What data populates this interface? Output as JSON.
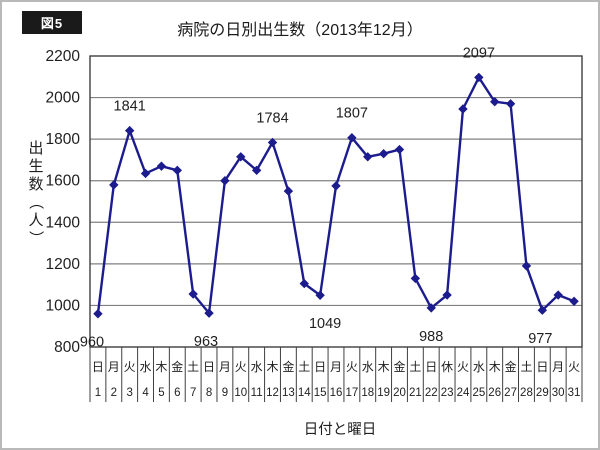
{
  "figure_label": "図5",
  "chart_data": {
    "type": "line",
    "title": "病院の日別出生数（2013年12月）",
    "xlabel": "日付と曜日",
    "ylabel": "出生数（人）",
    "ylim": [
      800,
      2200
    ],
    "ytick_interval": 200,
    "grid": true,
    "legend": false,
    "marker": "diamond",
    "x": [
      1,
      2,
      3,
      4,
      5,
      6,
      7,
      8,
      9,
      10,
      11,
      12,
      13,
      14,
      15,
      16,
      17,
      18,
      19,
      20,
      21,
      22,
      23,
      24,
      25,
      26,
      27,
      28,
      29,
      30,
      31
    ],
    "weekdays": [
      "日",
      "月",
      "火",
      "水",
      "木",
      "金",
      "土",
      "日",
      "月",
      "火",
      "水",
      "木",
      "金",
      "土",
      "日",
      "月",
      "火",
      "水",
      "木",
      "金",
      "土",
      "日",
      "休",
      "火",
      "水",
      "木",
      "金",
      "土",
      "日",
      "月",
      "火"
    ],
    "values": [
      960,
      1580,
      1841,
      1635,
      1670,
      1650,
      1055,
      963,
      1600,
      1715,
      1650,
      1784,
      1550,
      1105,
      1049,
      1575,
      1807,
      1715,
      1730,
      1750,
      1130,
      988,
      1050,
      1945,
      2097,
      1980,
      1970,
      1190,
      977,
      1050,
      1020
    ],
    "annotations": [
      {
        "day": 1,
        "text": "960",
        "pos": "below",
        "dx": -6
      },
      {
        "day": 3,
        "text": "1841",
        "pos": "above",
        "dx": 0
      },
      {
        "day": 8,
        "text": "963",
        "pos": "below",
        "dx": -3
      },
      {
        "day": 12,
        "text": "1784",
        "pos": "above",
        "dx": 0
      },
      {
        "day": 15,
        "text": "1049",
        "pos": "below",
        "dx": 5
      },
      {
        "day": 17,
        "text": "1807",
        "pos": "above",
        "dx": 0
      },
      {
        "day": 22,
        "text": "988",
        "pos": "below",
        "dx": 0
      },
      {
        "day": 25,
        "text": "2097",
        "pos": "above",
        "dx": 0
      },
      {
        "day": 29,
        "text": "977",
        "pos": "below",
        "dx": -2
      }
    ],
    "colors": {
      "line": "#1c1c8e",
      "grid": "#808080",
      "axis": "#3f3f3f",
      "text": "#1f1f1f"
    }
  }
}
